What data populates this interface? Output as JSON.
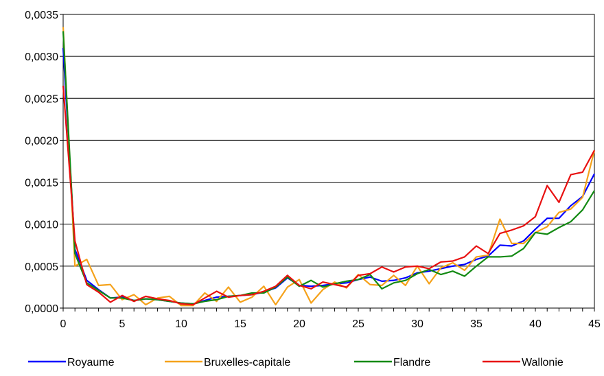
{
  "chart_data": {
    "type": "line",
    "x": [
      0,
      1,
      2,
      3,
      4,
      5,
      6,
      7,
      8,
      9,
      10,
      11,
      12,
      13,
      14,
      15,
      16,
      17,
      18,
      19,
      20,
      21,
      22,
      23,
      24,
      25,
      26,
      27,
      28,
      29,
      30,
      31,
      32,
      33,
      34,
      35,
      36,
      37,
      38,
      39,
      40,
      41,
      42,
      43,
      44,
      45
    ],
    "xlim": [
      0,
      45
    ],
    "ylim": [
      0,
      0.0035
    ],
    "xticks": [
      0,
      5,
      10,
      15,
      20,
      25,
      30,
      35,
      40,
      45
    ],
    "xtick_labels": [
      "0",
      "5",
      "10",
      "15",
      "20",
      "25",
      "30",
      "35",
      "40",
      "45"
    ],
    "yticks": [
      0,
      0.0005,
      0.001,
      0.0015,
      0.002,
      0.0025,
      0.003,
      0.0035
    ],
    "ytick_labels": [
      "0,0000",
      "0,0005",
      "0,0010",
      "0,0015",
      "0,0020",
      "0,0025",
      "0,0030",
      "0,0035"
    ],
    "grid": "horizontal",
    "legend_position": "bottom",
    "series": [
      {
        "name": "Royaume",
        "color": "#0000ff",
        "values": [
          0.0031,
          0.0007,
          0.00033,
          0.00022,
          0.00012,
          0.00013,
          9e-05,
          0.00011,
          0.0001,
          8e-05,
          6e-05,
          5e-05,
          9e-05,
          0.00013,
          0.00014,
          0.00015,
          0.00016,
          0.00019,
          0.00024,
          0.00036,
          0.00027,
          0.00026,
          0.00027,
          0.00029,
          0.0003,
          0.00034,
          0.00037,
          0.00032,
          0.00033,
          0.00036,
          0.00042,
          0.00044,
          0.00047,
          0.0005,
          0.00052,
          0.00058,
          0.00062,
          0.00075,
          0.00074,
          0.0008,
          0.00094,
          0.00107,
          0.00107,
          0.00122,
          0.00133,
          0.0016
        ]
      },
      {
        "name": "Bruxelles-capitale",
        "color": "#f5a21b",
        "values": [
          0.00335,
          0.0005,
          0.00058,
          0.00027,
          0.00028,
          0.0001,
          0.00016,
          4e-05,
          0.00012,
          0.00014,
          3e-05,
          3e-05,
          0.00018,
          8e-05,
          0.00025,
          7e-05,
          0.00013,
          0.00026,
          4e-05,
          0.00025,
          0.00034,
          6e-05,
          0.00022,
          0.00031,
          0.00024,
          0.0004,
          0.00028,
          0.00027,
          0.00039,
          0.00027,
          0.0005,
          0.00029,
          0.00048,
          0.00054,
          0.00045,
          0.00061,
          0.00063,
          0.00106,
          0.00077,
          0.00077,
          0.0009,
          0.00097,
          0.00114,
          0.00118,
          0.00132,
          0.00188
        ]
      },
      {
        "name": "Flandre",
        "color": "#138a13",
        "values": [
          0.0033,
          0.00065,
          0.0003,
          0.00021,
          0.00012,
          0.00012,
          9e-05,
          0.00011,
          0.0001,
          8e-05,
          6e-05,
          5e-05,
          8e-05,
          0.0001,
          0.00014,
          0.00015,
          0.00018,
          0.00018,
          0.00025,
          0.00037,
          0.00026,
          0.00033,
          0.00025,
          0.00029,
          0.00032,
          0.00034,
          0.0004,
          0.00023,
          0.0003,
          0.00033,
          0.00041,
          0.00046,
          0.0004,
          0.00044,
          0.00038,
          0.0005,
          0.00061,
          0.00061,
          0.00062,
          0.00071,
          0.0009,
          0.00088,
          0.00096,
          0.00103,
          0.00117,
          0.0014
        ]
      },
      {
        "name": "Wallonie",
        "color": "#e81010",
        "values": [
          0.00265,
          0.0008,
          0.00028,
          0.00019,
          7e-05,
          0.00015,
          8e-05,
          0.00014,
          0.00011,
          9e-05,
          5e-05,
          4e-05,
          0.00012,
          0.0002,
          0.00013,
          0.00015,
          0.00016,
          0.0002,
          0.00026,
          0.00039,
          0.00027,
          0.00023,
          0.00031,
          0.00028,
          0.00025,
          0.00039,
          0.00041,
          0.00049,
          0.00043,
          0.00049,
          0.0005,
          0.00047,
          0.00055,
          0.00056,
          0.00061,
          0.00074,
          0.00065,
          0.00089,
          0.00093,
          0.00098,
          0.00109,
          0.00146,
          0.00126,
          0.00159,
          0.00162,
          0.00188
        ]
      }
    ]
  }
}
